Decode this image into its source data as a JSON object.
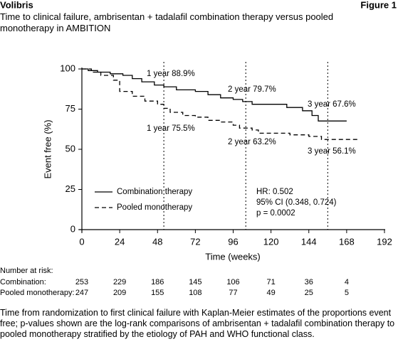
{
  "chart_data": {
    "type": "line",
    "header": "Volibris",
    "figure_label": "Figure 1",
    "title": "Time to clinical failure, ambrisentan + tadalafil combination therapy versus pooled monotherapy in AMBITION",
    "xlabel": "Time (weeks)",
    "ylabel": "Event free (%)",
    "xlim": [
      0,
      192
    ],
    "ylim": [
      0,
      100
    ],
    "xticks": [
      0,
      24,
      48,
      72,
      96,
      120,
      144,
      168,
      192
    ],
    "yticks": [
      0,
      25,
      50,
      75,
      100
    ],
    "series": [
      {
        "name": "Combination therapy",
        "color": "#000000",
        "dashed": false,
        "x": [
          0,
          4,
          4,
          10,
          10,
          18,
          18,
          26,
          26,
          32,
          32,
          38,
          38,
          46,
          46,
          52,
          52,
          60,
          60,
          72,
          72,
          80,
          80,
          88,
          88,
          96,
          96,
          102,
          102,
          108,
          108,
          130,
          130,
          140,
          140,
          146,
          146,
          150,
          150,
          168
        ],
        "values": [
          100,
          100,
          99,
          99,
          98,
          98,
          97,
          97,
          96,
          96,
          94,
          94,
          92,
          92,
          90,
          90,
          88.9,
          88.9,
          87,
          87,
          86,
          86,
          84,
          84,
          82,
          82,
          81,
          81,
          79.7,
          79.7,
          78,
          78,
          76,
          76,
          74,
          74,
          71,
          71,
          67.6,
          67.6
        ]
      },
      {
        "name": "Pooled monotherapy",
        "color": "#000000",
        "dashed": true,
        "x": [
          0,
          6,
          6,
          12,
          12,
          20,
          20,
          24,
          24,
          32,
          32,
          40,
          40,
          48,
          48,
          52,
          52,
          56,
          56,
          64,
          64,
          72,
          72,
          80,
          80,
          88,
          88,
          96,
          96,
          100,
          100,
          108,
          108,
          112,
          112,
          132,
          132,
          144,
          144,
          152,
          152,
          176
        ],
        "values": [
          100,
          100,
          98,
          98,
          96,
          96,
          93,
          93,
          86,
          86,
          83,
          83,
          80,
          80,
          78,
          78,
          75.5,
          75.5,
          73,
          73,
          71,
          71,
          70,
          70,
          68,
          68,
          67,
          67,
          65,
          65,
          63.2,
          63.2,
          62,
          62,
          60,
          60,
          59,
          59,
          58,
          58,
          56.1,
          56.1
        ]
      }
    ],
    "reference_lines": [
      52,
      104,
      156
    ],
    "annotations": [
      "1 year 88.9%",
      "2 year 79.7%",
      "3 year 67.6%",
      "1 year 75.5%",
      "2 year 63.2%",
      "3 year 56.1%"
    ],
    "stats": [
      "HR: 0.502",
      "95% CI (0.348, 0.724)",
      "p = 0.0002"
    ],
    "risk_table": {
      "title": "Number at risk:",
      "rows": [
        {
          "label": "Combination:",
          "values": [
            253,
            229,
            186,
            145,
            106,
            71,
            36,
            4
          ]
        },
        {
          "label": "Pooled monotherapy:",
          "values": [
            247,
            209,
            155,
            108,
            77,
            49,
            25,
            5
          ]
        }
      ]
    },
    "caption": "Time from randomization to first clinical failure with Kaplan-Meier estimates of the proportions event free; p-values shown are the log-rank comparisons of ambrisentan + tadalafil combination therapy to pooled monotherapy stratified by the etiology of PAH and WHO functional class."
  }
}
